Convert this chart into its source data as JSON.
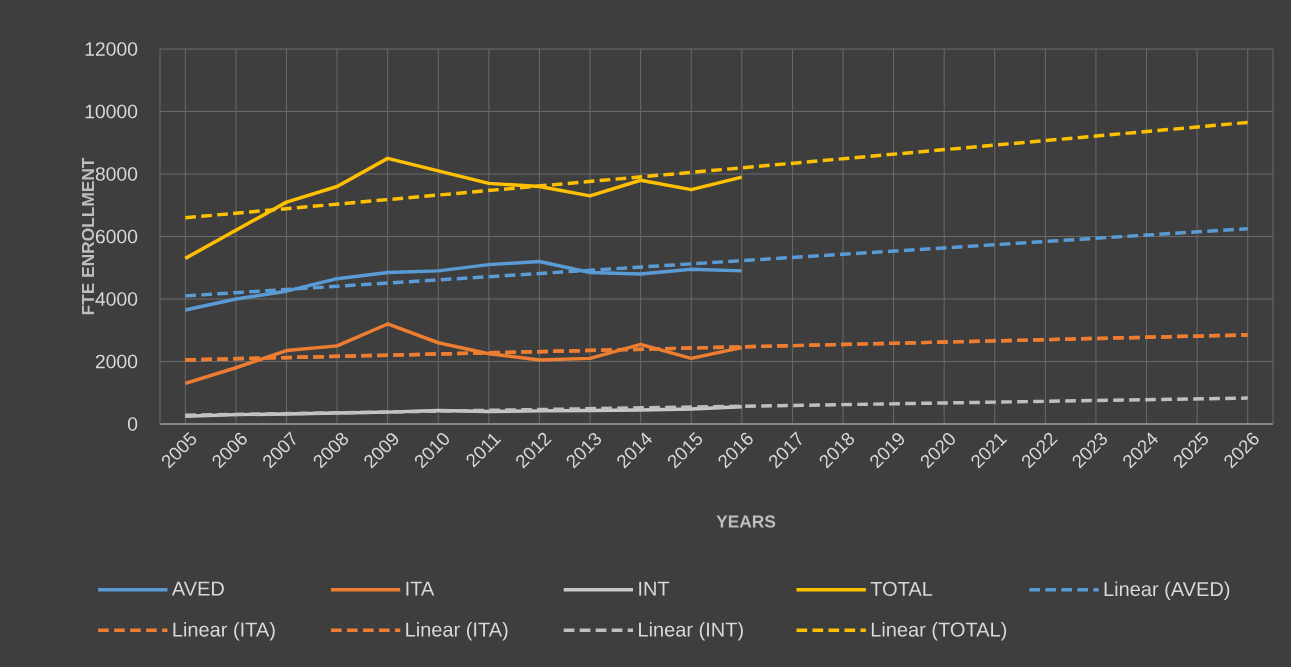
{
  "chart_data": {
    "type": "line",
    "xlabel": "YEARS",
    "ylabel": "FTE ENROLLMENT",
    "xlim": [
      2004.5,
      2026.5
    ],
    "xticks": [
      2005,
      2006,
      2007,
      2008,
      2009,
      2010,
      2011,
      2012,
      2013,
      2014,
      2015,
      2016,
      2017,
      2018,
      2019,
      2020,
      2021,
      2022,
      2023,
      2024,
      2025,
      2026
    ],
    "ylim": [
      0,
      12000
    ],
    "yticks": [
      0,
      2000,
      4000,
      6000,
      8000,
      10000,
      12000
    ],
    "grid": true,
    "legend": "bottom",
    "series": [
      {
        "name": "AVED",
        "color": "#5b9bd5",
        "line_style": "solid",
        "x": [
          2005,
          2006,
          2007,
          2008,
          2009,
          2010,
          2011,
          2012,
          2013,
          2014,
          2015,
          2016
        ],
        "values": [
          3650,
          4000,
          4250,
          4650,
          4850,
          4900,
          5100,
          5200,
          4850,
          4800,
          4950,
          4900
        ]
      },
      {
        "name": "ITA",
        "color": "#ed7d31",
        "line_style": "solid",
        "x": [
          2005,
          2006,
          2007,
          2008,
          2009,
          2010,
          2011,
          2012,
          2013,
          2014,
          2015,
          2016
        ],
        "values": [
          1300,
          1800,
          2350,
          2500,
          3200,
          2600,
          2250,
          2050,
          2100,
          2550,
          2100,
          2450
        ]
      },
      {
        "name": "INT",
        "color": "#c8c8c8",
        "line_style": "solid",
        "x": [
          2005,
          2006,
          2007,
          2008,
          2009,
          2010,
          2011,
          2012,
          2013,
          2014,
          2015,
          2016
        ],
        "values": [
          250,
          300,
          320,
          350,
          380,
          430,
          400,
          420,
          430,
          450,
          480,
          550
        ]
      },
      {
        "name": "TOTAL",
        "color": "#ffc000",
        "line_style": "solid",
        "x": [
          2005,
          2006,
          2007,
          2008,
          2009,
          2010,
          2011,
          2012,
          2013,
          2014,
          2015,
          2016
        ],
        "values": [
          5300,
          6200,
          7100,
          7600,
          8500,
          8100,
          7700,
          7600,
          7300,
          7800,
          7500,
          7900
        ]
      },
      {
        "name": "Linear (AVED)",
        "color": "#5b9bd5",
        "line_style": "dashed",
        "x": [
          2005,
          2026
        ],
        "values": [
          4100,
          6250
        ]
      },
      {
        "name": "Linear (ITA)",
        "color": "#ed7d31",
        "line_style": "dashed",
        "x": [
          2005,
          2026
        ],
        "values": [
          2050,
          2850
        ]
      },
      {
        "name": "Linear (ITA)",
        "color": "#ed7d31",
        "line_style": "dashed",
        "x": [
          2005,
          2026
        ],
        "values": [
          2050,
          2850
        ]
      },
      {
        "name": "Linear (INT)",
        "color": "#bfbfbf",
        "line_style": "dashed",
        "x": [
          2005,
          2026
        ],
        "values": [
          280,
          830
        ]
      },
      {
        "name": "Linear (TOTAL)",
        "color": "#ffc000",
        "line_style": "dashed",
        "x": [
          2005,
          2026
        ],
        "values": [
          6600,
          9650
        ]
      }
    ]
  }
}
